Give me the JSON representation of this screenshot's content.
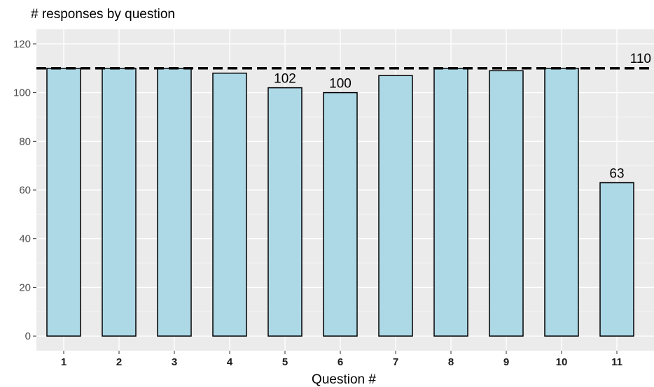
{
  "chart_data": {
    "type": "bar",
    "title": "# responses by question",
    "xlabel": "Question #",
    "ylabel": "",
    "categories": [
      "1",
      "2",
      "3",
      "4",
      "5",
      "6",
      "7",
      "8",
      "9",
      "10",
      "11"
    ],
    "values": [
      110,
      110,
      110,
      108,
      102,
      100,
      107,
      110,
      109,
      110,
      63
    ],
    "ylim": [
      -6,
      126
    ],
    "yticks": [
      0,
      20,
      40,
      60,
      80,
      100,
      120
    ],
    "bar_fill": "#add8e6",
    "bar_stroke": "#000000",
    "panel_background": "#ebebeb",
    "grid": true,
    "reference_line": {
      "value": 110,
      "label": "110",
      "style": "dashed"
    },
    "data_labels": [
      {
        "category": "5",
        "text": "102"
      },
      {
        "category": "6",
        "text": "100"
      },
      {
        "category": "11",
        "text": "63"
      }
    ]
  }
}
